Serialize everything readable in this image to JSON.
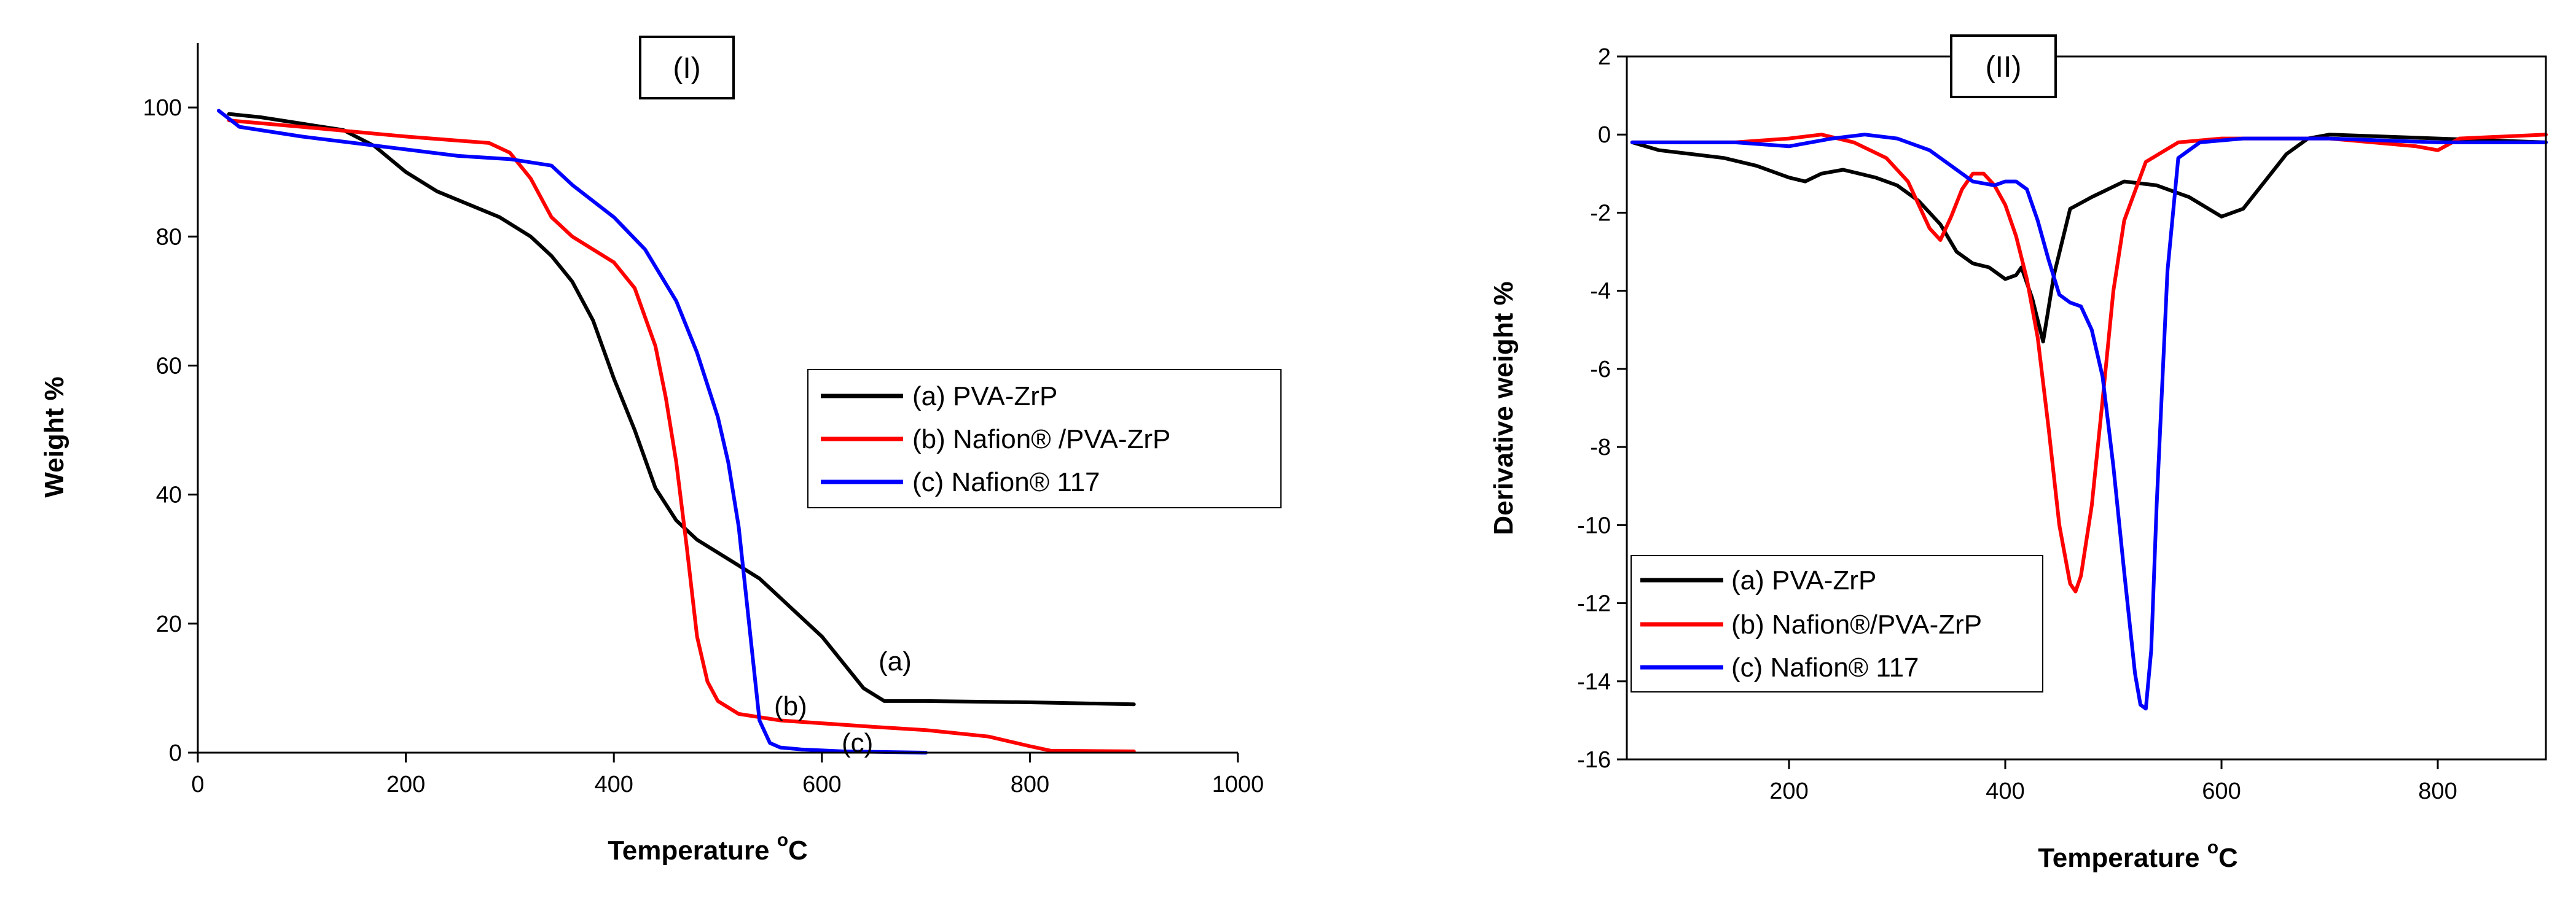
{
  "chart_data": [
    {
      "type": "line",
      "panel_label": "(I)",
      "xlabel": "Temperature",
      "xlabel_unit": "C",
      "xlabel_unit_sup": "o",
      "ylabel": "Weight %",
      "xlim": [
        0,
        1000
      ],
      "ylim": [
        0,
        110
      ],
      "xticks": [
        "0",
        "200",
        "400",
        "600",
        "800",
        "1000"
      ],
      "yticks": [
        "0",
        "20",
        "40",
        "60",
        "80",
        "100"
      ],
      "legend": [
        "(a) PVA-ZrP",
        "(b) Nafion® /PVA-ZrP",
        "(c) Nafion® 117"
      ],
      "annotations": [
        "(a)",
        "(b)",
        "(c)"
      ],
      "series": [
        {
          "name": "(a) PVA-ZrP",
          "color": "#000000",
          "x": [
            30,
            60,
            100,
            140,
            170,
            200,
            230,
            260,
            290,
            320,
            340,
            360,
            380,
            400,
            420,
            440,
            460,
            480,
            500,
            520,
            540,
            560,
            580,
            600,
            620,
            640,
            660,
            700,
            800,
            900
          ],
          "y": [
            99,
            98.5,
            97.5,
            96.5,
            94,
            90,
            87,
            85,
            83,
            80,
            77,
            73,
            67,
            58,
            50,
            41,
            36,
            33,
            31,
            29,
            27,
            24,
            21,
            18,
            14,
            10,
            8,
            8,
            7.8,
            7.5
          ]
        },
        {
          "name": "(b) Nafion® /PVA-ZrP",
          "color": "#ff0000",
          "x": [
            30,
            100,
            200,
            280,
            300,
            320,
            340,
            360,
            380,
            400,
            420,
            440,
            450,
            460,
            470,
            480,
            490,
            500,
            520,
            560,
            650,
            700,
            760,
            800,
            820,
            900
          ],
          "y": [
            98,
            97,
            95.5,
            94.5,
            93,
            89,
            83,
            80,
            78,
            76,
            72,
            63,
            55,
            45,
            32,
            18,
            11,
            8,
            6,
            5,
            4,
            3.5,
            2.5,
            1,
            0.3,
            0.2
          ]
        },
        {
          "name": "(c) Nafion® 117",
          "color": "#0000ff",
          "x": [
            20,
            40,
            100,
            150,
            200,
            250,
            300,
            340,
            360,
            400,
            430,
            460,
            480,
            500,
            510,
            520,
            530,
            540,
            550,
            560,
            580,
            620,
            700
          ],
          "y": [
            99.5,
            97,
            95.5,
            94.5,
            93.5,
            92.5,
            92,
            91,
            88,
            83,
            78,
            70,
            62,
            52,
            45,
            35,
            20,
            5,
            1.5,
            0.8,
            0.5,
            0.2,
            0
          ]
        }
      ]
    },
    {
      "type": "line",
      "panel_label": "(II)",
      "xlabel": "Temperature",
      "xlabel_unit": "C",
      "xlabel_unit_sup": "o",
      "ylabel": "Derivative weight %",
      "xlim": [
        50,
        900
      ],
      "ylim": [
        -16,
        2
      ],
      "xticks": [
        "200",
        "400",
        "600",
        "800"
      ],
      "yticks": [
        "2",
        "0",
        "-2",
        "-4",
        "-6",
        "-8",
        "-10",
        "-12",
        "-14",
        "-16"
      ],
      "legend": [
        "(a) PVA-ZrP",
        "(b) Nafion®/PVA-ZrP",
        "(c) Nafion® 117"
      ],
      "series": [
        {
          "name": "(a) PVA-ZrP",
          "color": "#000000",
          "x": [
            55,
            80,
            110,
            140,
            170,
            200,
            215,
            230,
            250,
            265,
            280,
            300,
            320,
            340,
            355,
            370,
            385,
            400,
            410,
            415,
            425,
            435,
            445,
            460,
            480,
            510,
            540,
            570,
            600,
            620,
            640,
            660,
            680,
            700,
            800,
            900
          ],
          "y": [
            -0.2,
            -0.4,
            -0.5,
            -0.6,
            -0.8,
            -1.1,
            -1.2,
            -1.0,
            -0.9,
            -1.0,
            -1.1,
            -1.3,
            -1.7,
            -2.3,
            -3.0,
            -3.3,
            -3.4,
            -3.7,
            -3.6,
            -3.4,
            -4.2,
            -5.3,
            -3.6,
            -1.9,
            -1.6,
            -1.2,
            -1.3,
            -1.6,
            -2.1,
            -1.9,
            -1.2,
            -0.5,
            -0.1,
            0,
            -0.1,
            -0.2
          ]
        },
        {
          "name": "(b) Nafion®/PVA-ZrP",
          "color": "#ff0000",
          "x": [
            55,
            150,
            200,
            230,
            260,
            290,
            310,
            330,
            340,
            350,
            360,
            370,
            380,
            390,
            400,
            410,
            420,
            430,
            440,
            450,
            460,
            465,
            470,
            480,
            490,
            500,
            510,
            530,
            560,
            600,
            700,
            780,
            800,
            820,
            900
          ],
          "y": [
            -0.2,
            -0.2,
            -0.1,
            0,
            -0.2,
            -0.6,
            -1.2,
            -2.4,
            -2.7,
            -2.1,
            -1.4,
            -1.0,
            -1.0,
            -1.3,
            -1.8,
            -2.6,
            -3.7,
            -5.2,
            -7.5,
            -10.0,
            -11.5,
            -11.7,
            -11.3,
            -9.5,
            -6.8,
            -4.0,
            -2.2,
            -0.7,
            -0.2,
            -0.1,
            -0.1,
            -0.3,
            -0.4,
            -0.1,
            0
          ]
        },
        {
          "name": "(c) Nafion® 117",
          "color": "#0000ff",
          "x": [
            55,
            150,
            200,
            240,
            270,
            300,
            330,
            350,
            370,
            390,
            400,
            410,
            420,
            430,
            440,
            450,
            460,
            470,
            480,
            490,
            500,
            510,
            520,
            525,
            530,
            535,
            540,
            550,
            560,
            580,
            620,
            700,
            800,
            900
          ],
          "y": [
            -0.2,
            -0.2,
            -0.3,
            -0.1,
            0,
            -0.1,
            -0.4,
            -0.8,
            -1.2,
            -1.3,
            -1.2,
            -1.2,
            -1.4,
            -2.2,
            -3.2,
            -4.1,
            -4.3,
            -4.4,
            -5.0,
            -6.2,
            -8.5,
            -11.2,
            -13.8,
            -14.6,
            -14.7,
            -13.2,
            -9.5,
            -3.5,
            -0.6,
            -0.2,
            -0.1,
            -0.1,
            -0.2,
            -0.2
          ]
        }
      ]
    }
  ]
}
